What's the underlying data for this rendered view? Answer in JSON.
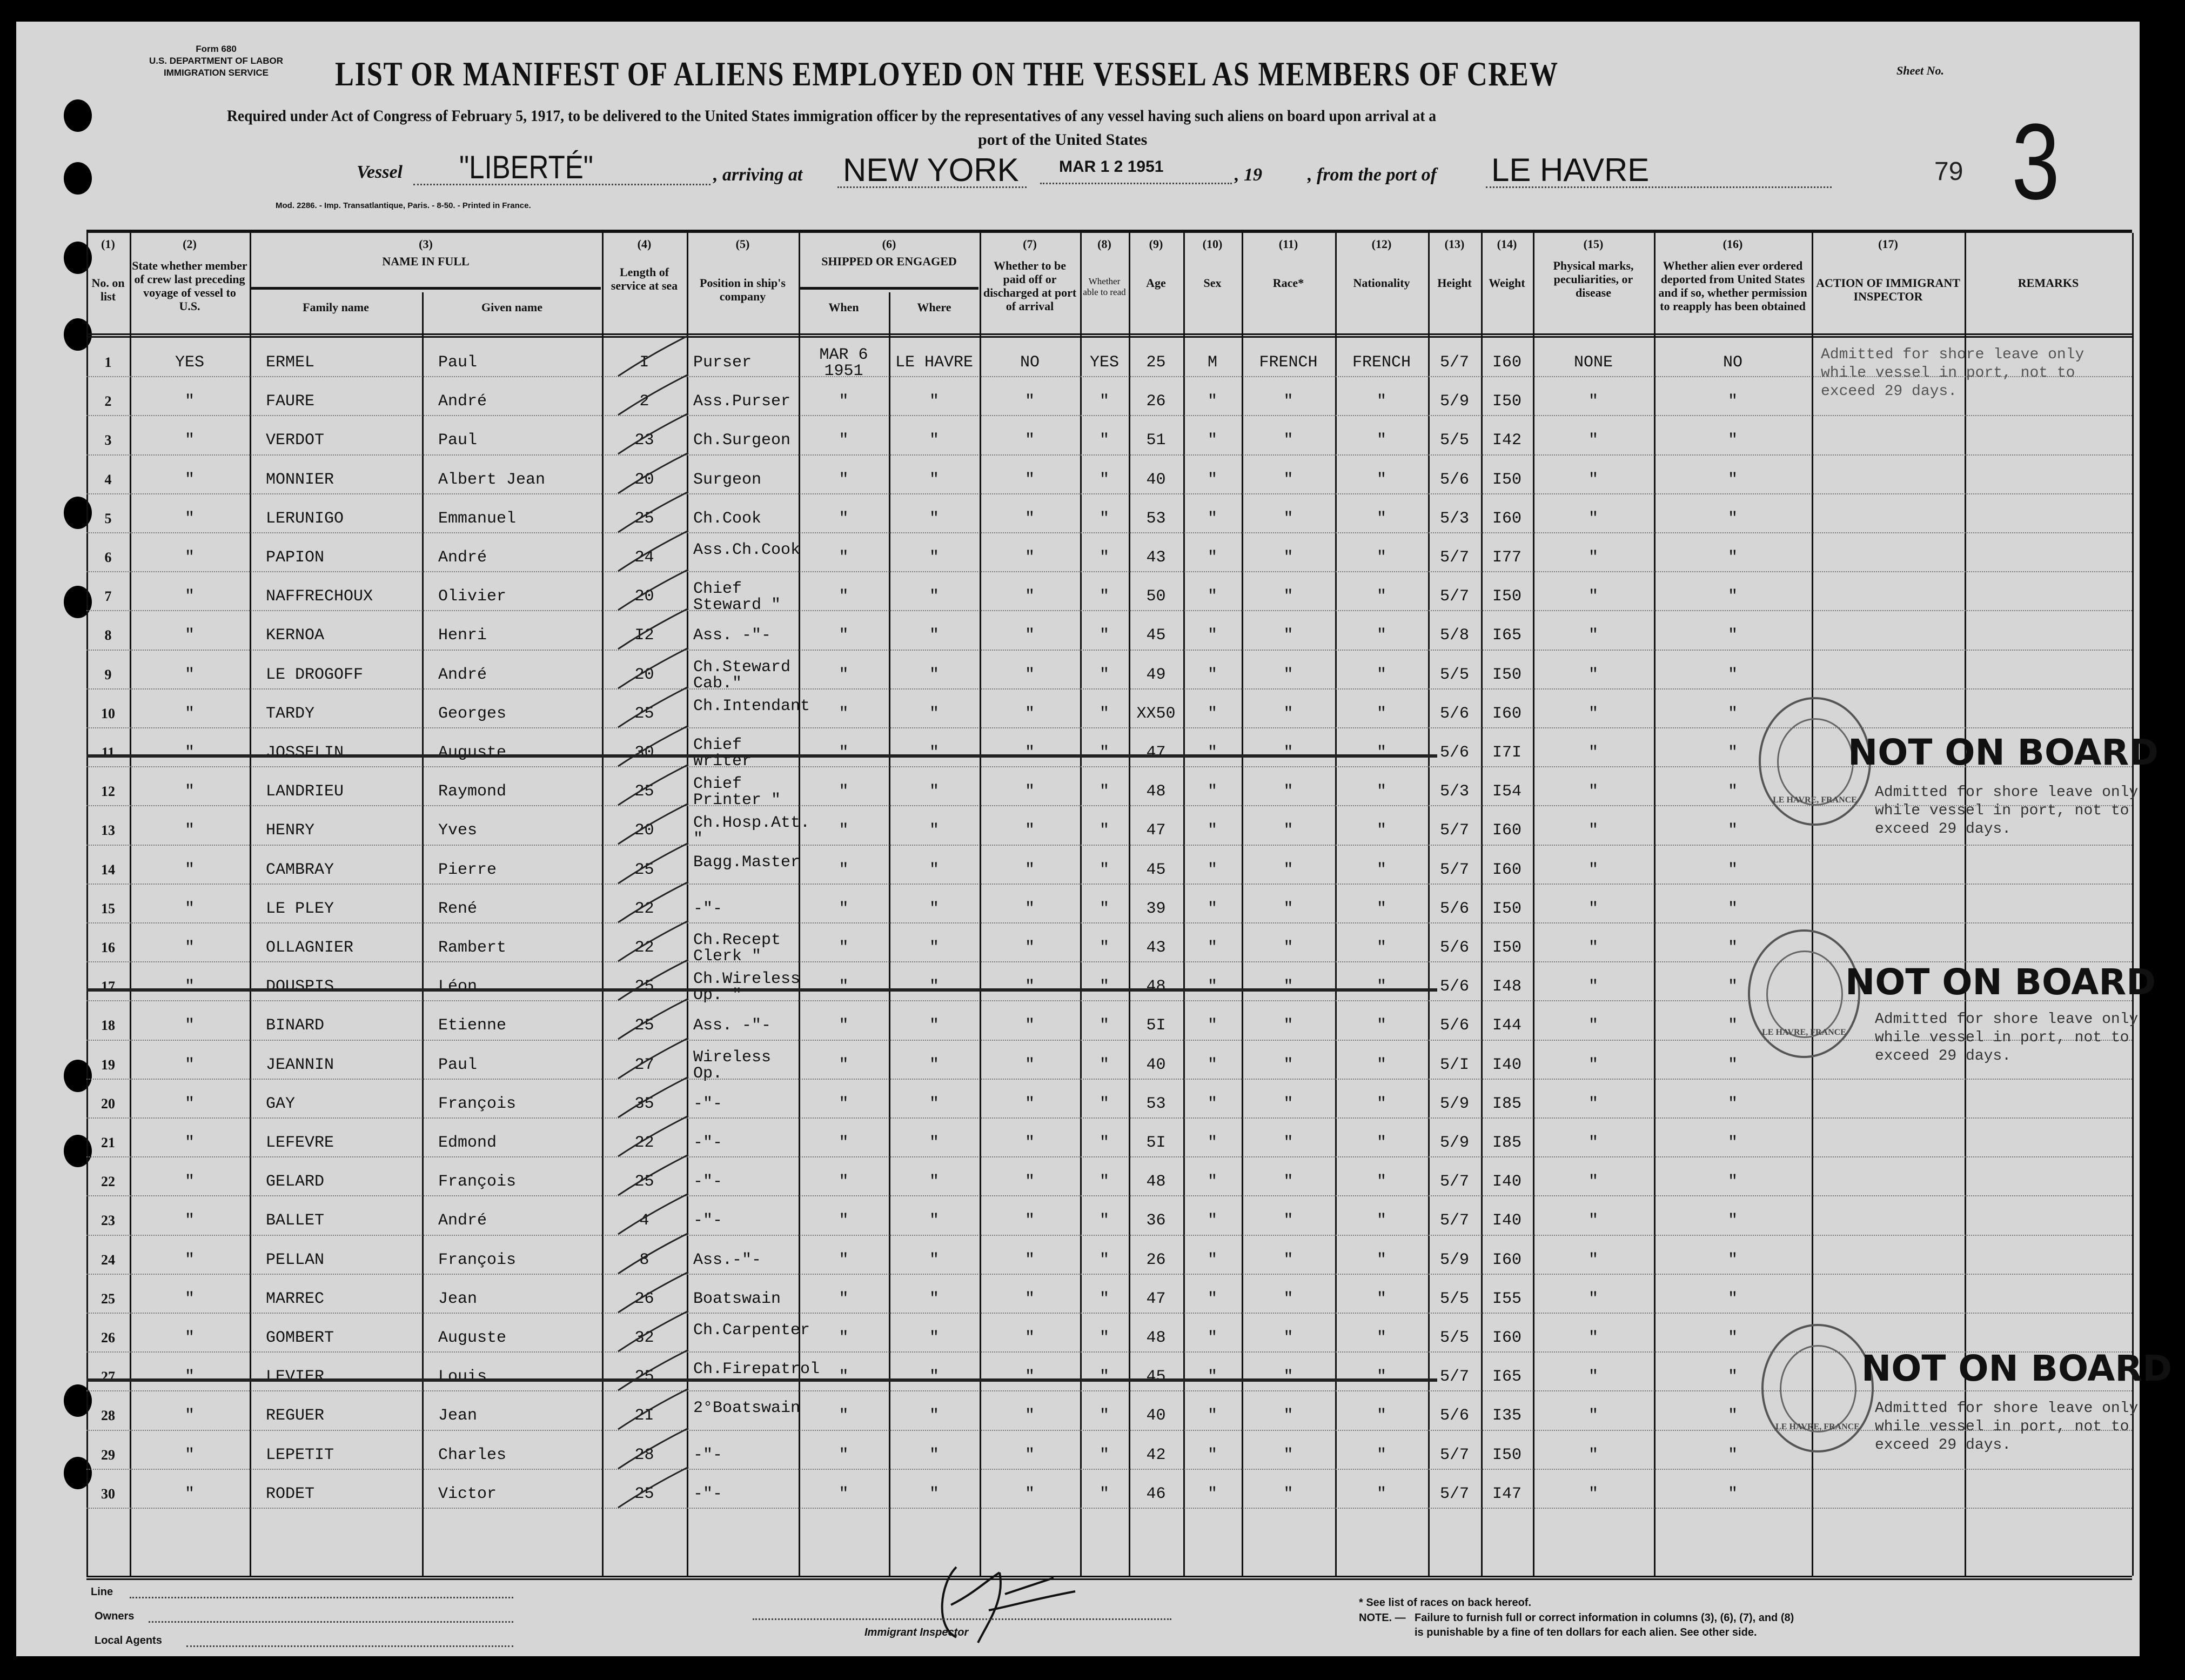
{
  "header": {
    "form_id": "Form 680\nU.S. DEPARTMENT OF LABOR\nIMMIGRATION SERVICE",
    "title": "LIST OR MANIFEST OF ALIENS EMPLOYED ON THE VESSEL AS MEMBERS OF CREW",
    "sheet_label": "Sheet No.",
    "required_text": "Required under Act of Congress of February 5, 1917, to be delivered to the United States immigration officer by the representatives of any vessel having such aliens on board upon arrival at a",
    "required_text_2": "port of the United States",
    "vessel_label": "Vessel",
    "vessel_name": "\"LIBERTÉ\"",
    "arriving_label": ", arriving at",
    "arriving_port": "NEW YORK",
    "arrival_date_stamp": "MAR 1 2 1951",
    "year_label": ", 19",
    "from_label": ", from the port of",
    "from_port": "LE HAVRE",
    "handwritten_number": "79",
    "sheet_number": "3",
    "mod_line": "Mod. 2286. - Imp. Transatlantique, Paris. - 8-50. - Printed in France."
  },
  "columns": [
    {
      "num": "(1)",
      "label": "No. on list"
    },
    {
      "num": "(2)",
      "label": "State whether member of crew last preceding voyage of vessel to U.S."
    },
    {
      "num": "(3)",
      "label": "NAME IN FULL",
      "sub": [
        "Family name",
        "Given name"
      ]
    },
    {
      "num": "(4)",
      "label": "Length of service at sea"
    },
    {
      "num": "(5)",
      "label": "Position in ship's company"
    },
    {
      "num": "(6)",
      "label": "SHIPPED OR ENGAGED",
      "sub": [
        "When",
        "Where"
      ]
    },
    {
      "num": "(7)",
      "label": "Whether to be paid off or discharged at port of arrival"
    },
    {
      "num": "(8)",
      "label": "Whether able to read"
    },
    {
      "num": "(9)",
      "label": "Age"
    },
    {
      "num": "(10)",
      "label": "Sex"
    },
    {
      "num": "(11)",
      "label": "Race*"
    },
    {
      "num": "(12)",
      "label": "Nationality"
    },
    {
      "num": "(13)",
      "label": "Height"
    },
    {
      "num": "(14)",
      "label": "Weight"
    },
    {
      "num": "(15)",
      "label": "Physical marks, peculiarities, or disease"
    },
    {
      "num": "(16)",
      "label": "Whether alien ever ordered deported from United States and if so, whether permission to reapply has been obtained"
    },
    {
      "num": "(17)",
      "label": "ACTION OF IMMIGRANT INSPECTOR"
    },
    {
      "num": "",
      "label": "REMARKS"
    }
  ],
  "rows": [
    [
      "1",
      "YES",
      "ERMEL",
      "Paul",
      "I",
      "Purser",
      "MAR 6 1951",
      "LE HAVRE",
      "NO",
      "YES",
      "25",
      "M",
      "FRENCH",
      "FRENCH",
      "5/7",
      "I60",
      "NONE",
      "NO"
    ],
    [
      "2",
      "\"",
      "FAURE",
      "André",
      "2",
      "Ass.Purser",
      "\"",
      "\"",
      "\"",
      "\"",
      "26",
      "\"",
      "\"",
      "\"",
      "5/9",
      "I50",
      "\"",
      "\""
    ],
    [
      "3",
      "\"",
      "VERDOT",
      "Paul",
      "23",
      "Ch.Surgeon",
      "\"",
      "\"",
      "\"",
      "\"",
      "51",
      "\"",
      "\"",
      "\"",
      "5/5",
      "I42",
      "\"",
      "\""
    ],
    [
      "4",
      "\"",
      "MONNIER",
      "Albert Jean",
      "20",
      "Surgeon",
      "\"",
      "\"",
      "\"",
      "\"",
      "40",
      "\"",
      "\"",
      "\"",
      "5/6",
      "I50",
      "\"",
      "\""
    ],
    [
      "5",
      "\"",
      "LERUNIGO",
      "Emmanuel",
      "25",
      "Ch.Cook",
      "\"",
      "\"",
      "\"",
      "\"",
      "53",
      "\"",
      "\"",
      "\"",
      "5/3",
      "I60",
      "\"",
      "\""
    ],
    [
      "6",
      "\"",
      "PAPION",
      "André",
      "24",
      "Ass.Ch.Cook",
      "\"",
      "\"",
      "\"",
      "\"",
      "43",
      "\"",
      "\"",
      "\"",
      "5/7",
      "I77",
      "\"",
      "\""
    ],
    [
      "7",
      "\"",
      "NAFFRECHOUX",
      "Olivier",
      "20",
      "Chief Steward \"",
      "\"",
      "\"",
      "\"",
      "\"",
      "50",
      "\"",
      "\"",
      "\"",
      "5/7",
      "I50",
      "\"",
      "\""
    ],
    [
      "8",
      "\"",
      "KERNOA",
      "Henri",
      "I2",
      "Ass. -\"-",
      "\"",
      "\"",
      "\"",
      "\"",
      "45",
      "\"",
      "\"",
      "\"",
      "5/8",
      "I65",
      "\"",
      "\""
    ],
    [
      "9",
      "\"",
      "LE DROGOFF",
      "André",
      "20",
      "Ch.Steward Cab.\"",
      "\"",
      "\"",
      "\"",
      "\"",
      "49",
      "\"",
      "\"",
      "\"",
      "5/5",
      "I50",
      "\"",
      "\""
    ],
    [
      "10",
      "\"",
      "TARDY",
      "Georges",
      "25",
      "Ch.Intendant",
      "\"",
      "\"",
      "\"",
      "\"",
      "XX50",
      "\"",
      "\"",
      "\"",
      "5/6",
      "I60",
      "\"",
      "\""
    ],
    [
      "11",
      "\"",
      "JOSSELIN",
      "Auguste",
      "30",
      "Chief Writer",
      "\"",
      "\"",
      "\"",
      "\"",
      "47",
      "\"",
      "\"",
      "\"",
      "5/6",
      "I7I",
      "\"",
      "\""
    ],
    [
      "12",
      "\"",
      "LANDRIEU",
      "Raymond",
      "25",
      "Chief Printer \"",
      "\"",
      "\"",
      "\"",
      "\"",
      "48",
      "\"",
      "\"",
      "\"",
      "5/3",
      "I54",
      "\"",
      "\""
    ],
    [
      "13",
      "\"",
      "HENRY",
      "Yves",
      "20",
      "Ch.Hosp.Att. \"",
      "\"",
      "\"",
      "\"",
      "\"",
      "47",
      "\"",
      "\"",
      "\"",
      "5/7",
      "I60",
      "\"",
      "\""
    ],
    [
      "14",
      "\"",
      "CAMBRAY",
      "Pierre",
      "25",
      "Bagg.Master",
      "\"",
      "\"",
      "\"",
      "\"",
      "45",
      "\"",
      "\"",
      "\"",
      "5/7",
      "I60",
      "\"",
      "\""
    ],
    [
      "15",
      "\"",
      "LE PLEY",
      "René",
      "22",
      "-\"-",
      "\"",
      "\"",
      "\"",
      "\"",
      "39",
      "\"",
      "\"",
      "\"",
      "5/6",
      "I50",
      "\"",
      "\""
    ],
    [
      "16",
      "\"",
      "OLLAGNIER",
      "Rambert",
      "22",
      "Ch.Recept Clerk \"",
      "\"",
      "\"",
      "\"",
      "\"",
      "43",
      "\"",
      "\"",
      "\"",
      "5/6",
      "I50",
      "\"",
      "\""
    ],
    [
      "17",
      "\"",
      "DOUSPIS",
      "Léon",
      "25",
      "Ch.Wireless Op. \"",
      "\"",
      "\"",
      "\"",
      "\"",
      "48",
      "\"",
      "\"",
      "\"",
      "5/6",
      "I48",
      "\"",
      "\""
    ],
    [
      "18",
      "\"",
      "BINARD",
      "Etienne",
      "25",
      "Ass. -\"-",
      "\"",
      "\"",
      "\"",
      "\"",
      "5I",
      "\"",
      "\"",
      "\"",
      "5/6",
      "I44",
      "\"",
      "\""
    ],
    [
      "19",
      "\"",
      "JEANNIN",
      "Paul",
      "27",
      "Wireless Op.",
      "\"",
      "\"",
      "\"",
      "\"",
      "40",
      "\"",
      "\"",
      "\"",
      "5/I",
      "I40",
      "\"",
      "\""
    ],
    [
      "20",
      "\"",
      "GAY",
      "François",
      "35",
      "-\"-",
      "\"",
      "\"",
      "\"",
      "\"",
      "53",
      "\"",
      "\"",
      "\"",
      "5/9",
      "I85",
      "\"",
      "\""
    ],
    [
      "21",
      "\"",
      "LEFEVRE",
      "Edmond",
      "22",
      "-\"-",
      "\"",
      "\"",
      "\"",
      "\"",
      "5I",
      "\"",
      "\"",
      "\"",
      "5/9",
      "I85",
      "\"",
      "\""
    ],
    [
      "22",
      "\"",
      "GELARD",
      "François",
      "25",
      "-\"-",
      "\"",
      "\"",
      "\"",
      "\"",
      "48",
      "\"",
      "\"",
      "\"",
      "5/7",
      "I40",
      "\"",
      "\""
    ],
    [
      "23",
      "\"",
      "BALLET",
      "André",
      "4",
      "-\"-",
      "\"",
      "\"",
      "\"",
      "\"",
      "36",
      "\"",
      "\"",
      "\"",
      "5/7",
      "I40",
      "\"",
      "\""
    ],
    [
      "24",
      "\"",
      "PELLAN",
      "François",
      "8",
      "Ass.-\"-",
      "\"",
      "\"",
      "\"",
      "\"",
      "26",
      "\"",
      "\"",
      "\"",
      "5/9",
      "I60",
      "\"",
      "\""
    ],
    [
      "25",
      "\"",
      "MARREC",
      "Jean",
      "26",
      "Boatswain",
      "\"",
      "\"",
      "\"",
      "\"",
      "47",
      "\"",
      "\"",
      "\"",
      "5/5",
      "I55",
      "\"",
      "\""
    ],
    [
      "26",
      "\"",
      "GOMBERT",
      "Auguste",
      "32",
      "Ch.Carpenter",
      "\"",
      "\"",
      "\"",
      "\"",
      "48",
      "\"",
      "\"",
      "\"",
      "5/5",
      "I60",
      "\"",
      "\""
    ],
    [
      "27",
      "\"",
      "LEVIER",
      "Louis",
      "25",
      "Ch.Firepatrol",
      "\"",
      "\"",
      "\"",
      "\"",
      "45",
      "\"",
      "\"",
      "\"",
      "5/7",
      "I65",
      "\"",
      "\""
    ],
    [
      "28",
      "\"",
      "REGUER",
      "Jean",
      "2I",
      "2°Boatswain",
      "\"",
      "\"",
      "\"",
      "\"",
      "40",
      "\"",
      "\"",
      "\"",
      "5/6",
      "I35",
      "\"",
      "\""
    ],
    [
      "29",
      "\"",
      "LEPETIT",
      "Charles",
      "28",
      "-\"-",
      "\"",
      "\"",
      "\"",
      "\"",
      "42",
      "\"",
      "\"",
      "\"",
      "5/7",
      "I50",
      "\"",
      "\""
    ],
    [
      "30",
      "\"",
      "RODET",
      "Victor",
      "25",
      "-\"-",
      "\"",
      "\"",
      "\"",
      "\"",
      "46",
      "\"",
      "\"",
      "\"",
      "5/7",
      "I47",
      "\"",
      "\""
    ]
  ],
  "struck_rows": [
    "11",
    "17",
    "27"
  ],
  "stamps": {
    "not_on_board": "NOT ON BOARD",
    "admitted": "Admitted for shore leave only\nwhile vessel in port, not to\nexceed 29 days.",
    "seal_text": "LE HAVRE, FRANCE"
  },
  "footer": {
    "line_label": "Line",
    "owners_label": "Owners",
    "local_agents_label": "Local Agents",
    "inspector_label": "Immigrant Inspector",
    "races_note": "* See list of races on back hereof.",
    "note_label": "NOTE. —",
    "note_text": "Failure to furnish full or correct information in columns (3), (6), (7), and (8)",
    "note_text_2": "is punishable by a fine of ten dollars for each alien. See other side."
  }
}
